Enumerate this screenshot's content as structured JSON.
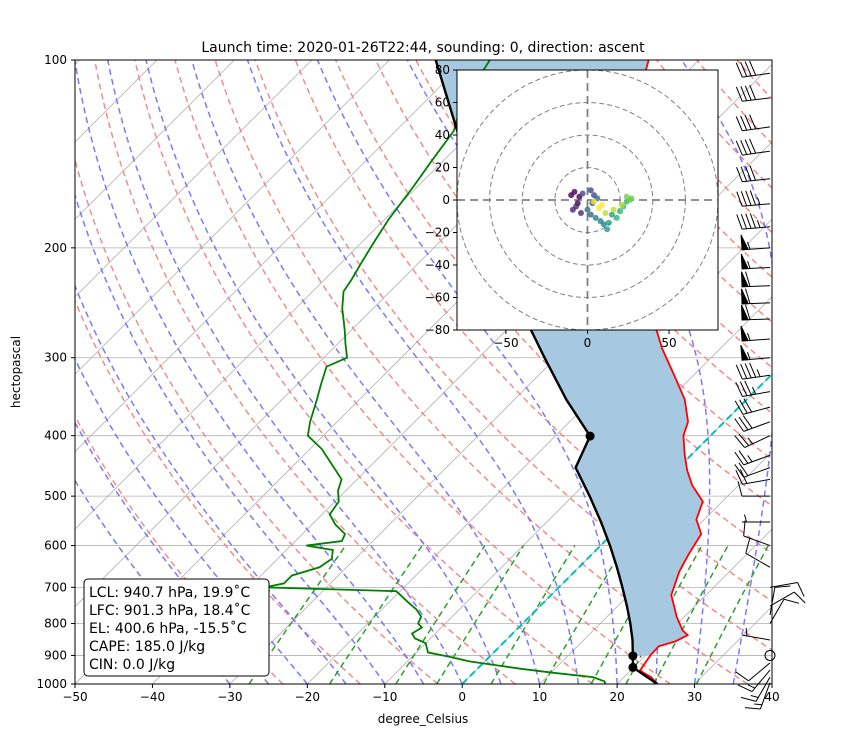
{
  "title": "Launch time: 2020-01-26T22:44, sounding: 0, direction: ascent",
  "chart_data": {
    "type": "skew-t",
    "title": "Launch time: 2020-01-26T22:44, sounding: 0, direction: ascent",
    "xlabel": "degree_Celsius",
    "ylabel": "hectopascal",
    "xlim": [
      -50,
      40
    ],
    "ylim": [
      1000,
      100
    ],
    "y_scale": "log",
    "x_ticks": [
      -50,
      -40,
      -30,
      -20,
      -10,
      0,
      10,
      20,
      30,
      40
    ],
    "y_ticks": [
      1000,
      900,
      800,
      700,
      600,
      500,
      400,
      300,
      200,
      100
    ],
    "grid": true,
    "colors": {
      "temperature": "#ff0000",
      "dewpoint": "#008000",
      "parcel": "#000000",
      "cape_fill": "#a6c8e0",
      "dry_adiabats": "#f08080",
      "moist_adiabats": "#6a6aff",
      "mixing_ratio": "#2ca02c",
      "freezing_line": "#00bfbf"
    },
    "temperature": [
      {
        "p": 1000,
        "t": 25.2
      },
      {
        "p": 975,
        "t": 23.5
      },
      {
        "p": 960,
        "t": 22.0
      },
      {
        "p": 950,
        "t": 21.2
      },
      {
        "p": 900,
        "t": 20.6
      },
      {
        "p": 870,
        "t": 20.5
      },
      {
        "p": 855,
        "t": 22.0
      },
      {
        "p": 835,
        "t": 22.8
      },
      {
        "p": 820,
        "t": 21.5
      },
      {
        "p": 780,
        "t": 19.0
      },
      {
        "p": 720,
        "t": 15.5
      },
      {
        "p": 660,
        "t": 13.5
      },
      {
        "p": 620,
        "t": 12.5
      },
      {
        "p": 575,
        "t": 11.5
      },
      {
        "p": 545,
        "t": 9.0
      },
      {
        "p": 510,
        "t": 7.5
      },
      {
        "p": 480,
        "t": 4.0
      },
      {
        "p": 455,
        "t": 1.5
      },
      {
        "p": 430,
        "t": -0.8
      },
      {
        "p": 400,
        "t": -3.5
      },
      {
        "p": 380,
        "t": -4.7
      },
      {
        "p": 350,
        "t": -8.0
      },
      {
        "p": 320,
        "t": -12.5
      },
      {
        "p": 290,
        "t": -17.5
      },
      {
        "p": 260,
        "t": -22.5
      },
      {
        "p": 240,
        "t": -26.5
      },
      {
        "p": 230,
        "t": -27.5
      },
      {
        "p": 215,
        "t": -29.5
      },
      {
        "p": 200,
        "t": -32.5
      },
      {
        "p": 180,
        "t": -36.5
      },
      {
        "p": 160,
        "t": -41.0
      },
      {
        "p": 140,
        "t": -46.5
      },
      {
        "p": 130,
        "t": -49.5
      },
      {
        "p": 120,
        "t": -52.5
      },
      {
        "p": 112,
        "t": -53.0
      },
      {
        "p": 108,
        "t": -54.5
      },
      {
        "p": 104,
        "t": -55.5
      },
      {
        "p": 100,
        "t": -56.5
      }
    ],
    "dewpoint": [
      {
        "p": 1000,
        "t": 18.5
      },
      {
        "p": 990,
        "t": 18.0
      },
      {
        "p": 975,
        "t": 16.0
      },
      {
        "p": 960,
        "t": 10.5
      },
      {
        "p": 945,
        "t": 5.5
      },
      {
        "p": 935,
        "t": 2.5
      },
      {
        "p": 920,
        "t": -2.0
      },
      {
        "p": 905,
        "t": -5.0
      },
      {
        "p": 890,
        "t": -8.5
      },
      {
        "p": 860,
        "t": -10.0
      },
      {
        "p": 845,
        "t": -12.0
      },
      {
        "p": 830,
        "t": -13.0
      },
      {
        "p": 812,
        "t": -12.5
      },
      {
        "p": 800,
        "t": -13.5
      },
      {
        "p": 780,
        "t": -14.0
      },
      {
        "p": 760,
        "t": -15.5
      },
      {
        "p": 740,
        "t": -17.5
      },
      {
        "p": 710,
        "t": -20.5
      },
      {
        "p": 700,
        "t": -38.0
      },
      {
        "p": 690,
        "t": -36.0
      },
      {
        "p": 670,
        "t": -36.0
      },
      {
        "p": 650,
        "t": -33.5
      },
      {
        "p": 630,
        "t": -33.0
      },
      {
        "p": 610,
        "t": -34.0
      },
      {
        "p": 600,
        "t": -38.0
      },
      {
        "p": 590,
        "t": -34.0
      },
      {
        "p": 575,
        "t": -34.5
      },
      {
        "p": 555,
        "t": -37.0
      },
      {
        "p": 535,
        "t": -39.0
      },
      {
        "p": 510,
        "t": -39.5
      },
      {
        "p": 490,
        "t": -41.0
      },
      {
        "p": 470,
        "t": -42.0
      },
      {
        "p": 450,
        "t": -44.5
      },
      {
        "p": 420,
        "t": -48.5
      },
      {
        "p": 400,
        "t": -52.0
      },
      {
        "p": 380,
        "t": -53.5
      },
      {
        "p": 350,
        "t": -55.5
      },
      {
        "p": 330,
        "t": -57.0
      },
      {
        "p": 310,
        "t": -58.5
      },
      {
        "p": 300,
        "t": -57.0
      },
      {
        "p": 285,
        "t": -59.0
      },
      {
        "p": 270,
        "t": -61.0
      },
      {
        "p": 250,
        "t": -64.0
      },
      {
        "p": 235,
        "t": -66.0
      },
      {
        "p": 225,
        "t": -66.5
      },
      {
        "p": 210,
        "t": -67.5
      },
      {
        "p": 195,
        "t": -68.5
      },
      {
        "p": 180,
        "t": -69.5
      },
      {
        "p": 160,
        "t": -70.5
      },
      {
        "p": 145,
        "t": -71.5
      },
      {
        "p": 130,
        "t": -72.5
      },
      {
        "p": 120,
        "t": -74.5
      },
      {
        "p": 110,
        "t": -76.0
      },
      {
        "p": 104,
        "t": -76.5
      },
      {
        "p": 100,
        "t": -77.0
      }
    ],
    "parcel": [
      {
        "p": 1000,
        "t": 25.2
      },
      {
        "p": 940.7,
        "t": 19.9
      },
      {
        "p": 901.3,
        "t": 18.4
      },
      {
        "p": 850,
        "t": 16.3
      },
      {
        "p": 800,
        "t": 13.9
      },
      {
        "p": 750,
        "t": 11.2
      },
      {
        "p": 700,
        "t": 8.2
      },
      {
        "p": 650,
        "t": 4.9
      },
      {
        "p": 600,
        "t": 1.2
      },
      {
        "p": 550,
        "t": -3.0
      },
      {
        "p": 500,
        "t": -7.8
      },
      {
        "p": 450,
        "t": -13.3
      },
      {
        "p": 400.6,
        "t": -15.5
      },
      {
        "p": 350,
        "t": -23.3
      },
      {
        "p": 300,
        "t": -31.5
      },
      {
        "p": 250,
        "t": -41.0
      },
      {
        "p": 200,
        "t": -52.0
      },
      {
        "p": 150,
        "t": -65.5
      },
      {
        "p": 100,
        "t": -84.0
      }
    ],
    "levels": [
      {
        "name": "LCL",
        "p": 940.7,
        "t": 19.9
      },
      {
        "name": "LFC",
        "p": 901.3,
        "t": 18.4
      },
      {
        "name": "EL",
        "p": 400.6,
        "t": -15.5
      }
    ],
    "indices_box": [
      "LCL: 940.7 hPa, 19.9˚C",
      "LFC: 901.3 hPa, 18.4˚C",
      "EL: 400.6 hPa, -15.5˚C",
      "CAPE: 185.0 J/kg",
      "CIN: 0.0 J/kg"
    ],
    "hodograph": {
      "xlim": [
        -80,
        80
      ],
      "ylim": [
        -80,
        80
      ],
      "x_ticks": [
        -50,
        0,
        50
      ],
      "y_ticks": [
        80,
        60,
        40,
        20,
        0,
        -20,
        -40,
        -60,
        -80
      ],
      "range_rings": [
        20,
        40,
        60,
        80
      ],
      "colormap": "viridis",
      "points": [
        [
          -5,
          2
        ],
        [
          -8,
          5
        ],
        [
          -10,
          3
        ],
        [
          -6,
          -2
        ],
        [
          -9,
          -6
        ],
        [
          -4,
          -8
        ],
        [
          -7,
          -4
        ],
        [
          -3,
          4
        ],
        [
          2,
          6
        ],
        [
          4,
          3
        ],
        [
          6,
          1
        ],
        [
          3,
          -2
        ],
        [
          0,
          -6
        ],
        [
          2,
          -9
        ],
        [
          5,
          -11
        ],
        [
          8,
          -13
        ],
        [
          10,
          -15
        ],
        [
          12,
          -18
        ],
        [
          13,
          -14
        ],
        [
          15,
          -9
        ],
        [
          18,
          -11
        ],
        [
          20,
          -7
        ],
        [
          22,
          -4
        ],
        [
          24,
          -1
        ],
        [
          26,
          0
        ],
        [
          27,
          1
        ],
        [
          24,
          2
        ],
        [
          21,
          -3
        ],
        [
          16,
          -6
        ],
        [
          11,
          -8
        ],
        [
          7,
          -5
        ],
        [
          9,
          -3
        ],
        [
          4,
          -1
        ]
      ]
    },
    "wind_barbs": [
      {
        "p": 995,
        "speed": 15,
        "direction": 200
      },
      {
        "p": 975,
        "speed": 15,
        "direction": 210
      },
      {
        "p": 950,
        "speed": 15,
        "direction": 220
      },
      {
        "p": 925,
        "speed": 10,
        "direction": 230
      },
      {
        "p": 900,
        "speed": 0,
        "direction": 0
      },
      {
        "p": 850,
        "speed": 5,
        "direction": 280
      },
      {
        "p": 800,
        "speed": 10,
        "direction": 30
      },
      {
        "p": 775,
        "speed": 10,
        "direction": 10
      },
      {
        "p": 750,
        "speed": 10,
        "direction": 60
      },
      {
        "p": 700,
        "speed": 10,
        "direction": 80
      },
      {
        "p": 650,
        "speed": 10,
        "direction": 300
      },
      {
        "p": 600,
        "speed": 10,
        "direction": 290
      },
      {
        "p": 550,
        "speed": 5,
        "direction": 270
      },
      {
        "p": 500,
        "speed": 10,
        "direction": 270
      },
      {
        "p": 470,
        "speed": 20,
        "direction": 260
      },
      {
        "p": 450,
        "speed": 20,
        "direction": 250
      },
      {
        "p": 430,
        "speed": 25,
        "direction": 250
      },
      {
        "p": 400,
        "speed": 25,
        "direction": 245
      },
      {
        "p": 380,
        "speed": 30,
        "direction": 250
      },
      {
        "p": 360,
        "speed": 30,
        "direction": 255
      },
      {
        "p": 340,
        "speed": 35,
        "direction": 260
      },
      {
        "p": 320,
        "speed": 45,
        "direction": 262
      },
      {
        "p": 300,
        "speed": 55,
        "direction": 265
      },
      {
        "p": 280,
        "speed": 55,
        "direction": 266
      },
      {
        "p": 260,
        "speed": 60,
        "direction": 268
      },
      {
        "p": 245,
        "speed": 60,
        "direction": 268
      },
      {
        "p": 230,
        "speed": 60,
        "direction": 268
      },
      {
        "p": 215,
        "speed": 55,
        "direction": 267
      },
      {
        "p": 200,
        "speed": 55,
        "direction": 266
      },
      {
        "p": 185,
        "speed": 45,
        "direction": 265
      },
      {
        "p": 170,
        "speed": 45,
        "direction": 265
      },
      {
        "p": 155,
        "speed": 40,
        "direction": 264
      },
      {
        "p": 140,
        "speed": 40,
        "direction": 262
      },
      {
        "p": 128,
        "speed": 40,
        "direction": 262
      },
      {
        "p": 115,
        "speed": 40,
        "direction": 263
      },
      {
        "p": 105,
        "speed": 40,
        "direction": 262
      }
    ]
  }
}
